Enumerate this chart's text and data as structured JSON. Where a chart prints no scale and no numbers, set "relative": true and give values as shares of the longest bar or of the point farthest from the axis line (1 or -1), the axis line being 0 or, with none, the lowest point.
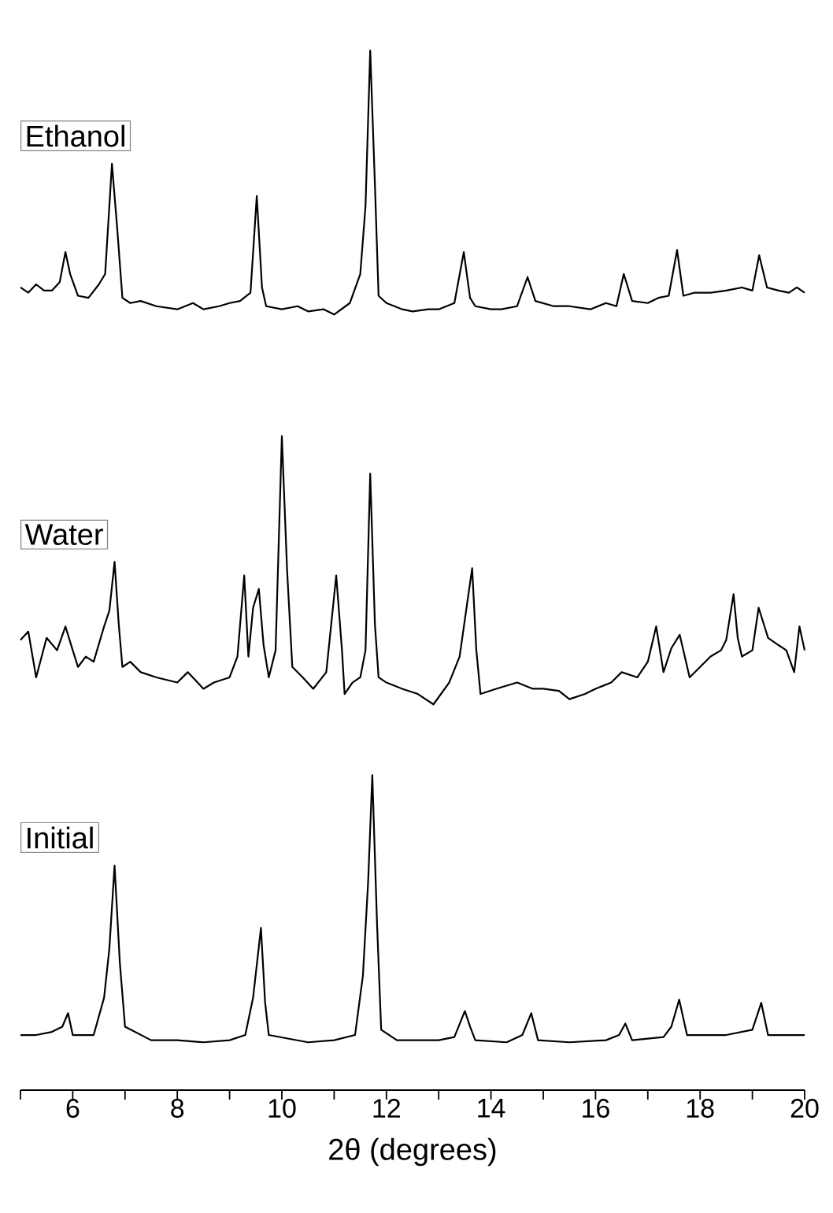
{
  "chart_data": {
    "type": "line",
    "relative": true,
    "xlim": [
      5,
      20
    ],
    "xticks": [
      {
        "value": 5,
        "label": null
      },
      6,
      {
        "value": 7,
        "label": null
      },
      8,
      {
        "value": 9,
        "label": null
      },
      10,
      {
        "value": 11,
        "label": null
      },
      12,
      {
        "value": 13,
        "label": null
      },
      14,
      {
        "value": 15,
        "label": null
      },
      16,
      {
        "value": 17,
        "label": null
      },
      18,
      {
        "value": 19,
        "label": null
      },
      20
    ],
    "xlabel": "2θ (degrees)",
    "series": [
      {
        "name": "Ethanol",
        "color": "#000000",
        "x": [
          5.0,
          5.15,
          5.3,
          5.45,
          5.6,
          5.75,
          5.86,
          5.95,
          6.1,
          6.3,
          6.5,
          6.62,
          6.75,
          6.85,
          6.95,
          7.1,
          7.3,
          7.6,
          8.0,
          8.3,
          8.5,
          8.8,
          9.0,
          9.2,
          9.4,
          9.52,
          9.62,
          9.7,
          10.0,
          10.3,
          10.5,
          10.8,
          11.0,
          11.3,
          11.5,
          11.6,
          11.69,
          11.78,
          11.85,
          12.0,
          12.3,
          12.5,
          12.8,
          13.0,
          13.3,
          13.48,
          13.6,
          13.7,
          14.0,
          14.2,
          14.5,
          14.7,
          14.85,
          15.2,
          15.5,
          15.9,
          16.2,
          16.4,
          16.54,
          16.7,
          17.0,
          17.2,
          17.4,
          17.56,
          17.68,
          17.9,
          18.2,
          18.5,
          18.8,
          19.0,
          19.13,
          19.28,
          19.5,
          19.7,
          19.85,
          20.0
        ],
        "values": [
          0.772,
          0.767,
          0.775,
          0.769,
          0.769,
          0.777,
          0.806,
          0.785,
          0.764,
          0.762,
          0.775,
          0.785,
          0.891,
          0.829,
          0.762,
          0.757,
          0.759,
          0.754,
          0.751,
          0.757,
          0.751,
          0.754,
          0.757,
          0.759,
          0.767,
          0.86,
          0.772,
          0.754,
          0.751,
          0.754,
          0.749,
          0.751,
          0.746,
          0.757,
          0.785,
          0.85,
          1.0,
          0.871,
          0.764,
          0.757,
          0.751,
          0.749,
          0.751,
          0.751,
          0.757,
          0.806,
          0.762,
          0.754,
          0.751,
          0.751,
          0.754,
          0.782,
          0.759,
          0.754,
          0.754,
          0.751,
          0.757,
          0.754,
          0.785,
          0.759,
          0.757,
          0.762,
          0.764,
          0.808,
          0.764,
          0.767,
          0.767,
          0.769,
          0.772,
          0.769,
          0.803,
          0.772,
          0.769,
          0.767,
          0.772,
          0.767
        ]
      },
      {
        "name": "Water",
        "color": "#000000",
        "x": [
          5.0,
          5.15,
          5.3,
          5.5,
          5.7,
          5.86,
          6.0,
          6.1,
          6.25,
          6.4,
          6.6,
          6.7,
          6.8,
          6.88,
          6.95,
          7.1,
          7.3,
          7.6,
          8.0,
          8.2,
          8.5,
          8.7,
          9.0,
          9.15,
          9.28,
          9.36,
          9.45,
          9.56,
          9.65,
          9.75,
          9.88,
          10.0,
          10.1,
          10.2,
          10.4,
          10.6,
          10.85,
          11.04,
          11.15,
          11.2,
          11.35,
          11.5,
          11.6,
          11.69,
          11.78,
          11.85,
          12.0,
          12.3,
          12.6,
          12.9,
          13.2,
          13.4,
          13.64,
          13.72,
          13.8,
          14.1,
          14.5,
          14.8,
          15.0,
          15.3,
          15.5,
          15.8,
          16.0,
          16.3,
          16.5,
          16.8,
          17.0,
          17.16,
          17.3,
          17.45,
          17.61,
          17.8,
          18.0,
          18.2,
          18.4,
          18.5,
          18.64,
          18.72,
          18.8,
          19.0,
          19.12,
          19.3,
          19.5,
          19.65,
          19.8,
          19.9,
          20.0
        ],
        "values": [
          0.433,
          0.441,
          0.397,
          0.435,
          0.423,
          0.446,
          0.423,
          0.407,
          0.417,
          0.412,
          0.446,
          0.461,
          0.508,
          0.448,
          0.407,
          0.412,
          0.402,
          0.397,
          0.392,
          0.402,
          0.386,
          0.392,
          0.397,
          0.417,
          0.495,
          0.417,
          0.464,
          0.482,
          0.428,
          0.397,
          0.423,
          0.629,
          0.5,
          0.407,
          0.397,
          0.386,
          0.402,
          0.495,
          0.423,
          0.381,
          0.392,
          0.397,
          0.423,
          0.593,
          0.448,
          0.397,
          0.392,
          0.386,
          0.381,
          0.371,
          0.392,
          0.417,
          0.502,
          0.423,
          0.381,
          0.386,
          0.392,
          0.386,
          0.386,
          0.384,
          0.376,
          0.381,
          0.386,
          0.392,
          0.402,
          0.397,
          0.412,
          0.446,
          0.402,
          0.425,
          0.438,
          0.397,
          0.407,
          0.417,
          0.423,
          0.433,
          0.477,
          0.435,
          0.417,
          0.423,
          0.464,
          0.435,
          0.428,
          0.423,
          0.402,
          0.446,
          0.423
        ]
      },
      {
        "name": "Initial",
        "color": "#000000",
        "x": [
          5.0,
          5.3,
          5.6,
          5.8,
          5.91,
          6.0,
          6.4,
          6.6,
          6.7,
          6.8,
          6.9,
          7.0,
          7.5,
          8.0,
          8.5,
          9.0,
          9.3,
          9.45,
          9.6,
          9.68,
          9.75,
          10.5,
          11.0,
          11.4,
          11.55,
          11.65,
          11.73,
          11.82,
          11.9,
          12.2,
          13.0,
          13.3,
          13.5,
          13.6,
          13.7,
          14.3,
          14.6,
          14.77,
          14.9,
          15.5,
          16.2,
          16.45,
          16.57,
          16.7,
          17.3,
          17.45,
          17.6,
          17.75,
          18.5,
          19.0,
          19.17,
          19.3,
          19.7,
          20.0
        ],
        "values": [
          0.053,
          0.053,
          0.056,
          0.061,
          0.074,
          0.053,
          0.053,
          0.089,
          0.136,
          0.216,
          0.123,
          0.061,
          0.048,
          0.048,
          0.046,
          0.048,
          0.053,
          0.089,
          0.156,
          0.084,
          0.053,
          0.046,
          0.048,
          0.053,
          0.11,
          0.2,
          0.303,
          0.161,
          0.058,
          0.048,
          0.048,
          0.051,
          0.076,
          0.061,
          0.048,
          0.046,
          0.053,
          0.074,
          0.048,
          0.046,
          0.048,
          0.053,
          0.064,
          0.048,
          0.051,
          0.061,
          0.087,
          0.053,
          0.053,
          0.058,
          0.084,
          0.053,
          0.053,
          0.053
        ]
      }
    ]
  }
}
